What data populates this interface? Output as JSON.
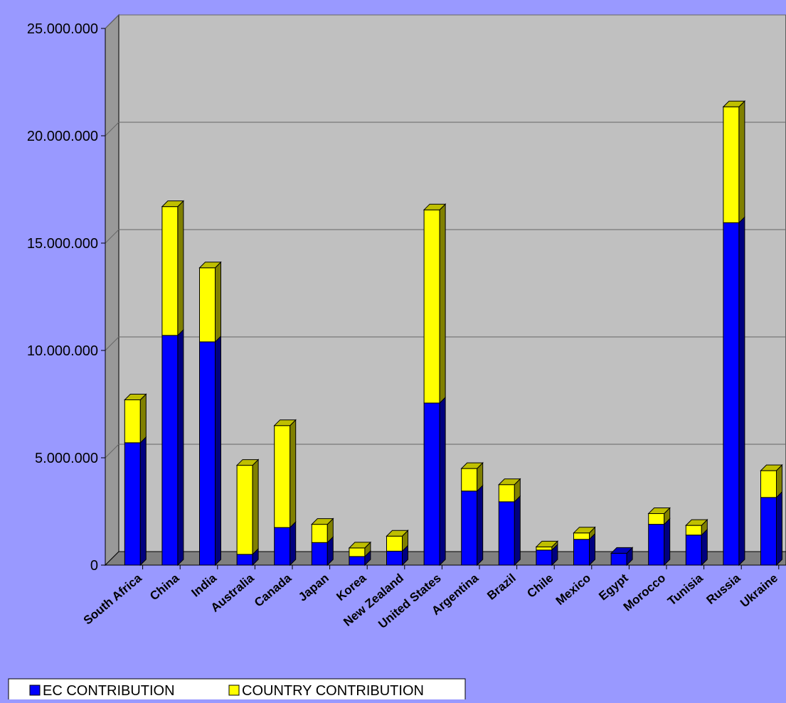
{
  "chart_data": {
    "type": "bar",
    "stacked": true,
    "three_d": true,
    "categories": [
      "South Africa",
      "China",
      "India",
      "Australia",
      "Canada",
      "Japan",
      "Korea",
      "New Zealand",
      "United States",
      "Argentina",
      "Brazil",
      "Chile",
      "Mexico",
      "Egypt",
      "Morocco",
      "Tunisia",
      "Russia",
      "Ukraine"
    ],
    "series": [
      {
        "name": "EC CONTRIBUTION",
        "color": "#0000ff",
        "values": [
          5700000,
          10700000,
          10400000,
          500000,
          1750000,
          1050000,
          400000,
          650000,
          7550000,
          3450000,
          2950000,
          700000,
          1200000,
          550000,
          1900000,
          1400000,
          15950000,
          3150000
        ]
      },
      {
        "name": "COUNTRY CONTRIBUTION",
        "color": "#ffff00",
        "values": [
          2000000,
          6000000,
          3450000,
          4150000,
          4750000,
          850000,
          400000,
          700000,
          9000000,
          1050000,
          800000,
          150000,
          300000,
          0,
          500000,
          450000,
          5400000,
          1250000
        ]
      }
    ],
    "ytick_labels": [
      "0",
      "5.000.000",
      "10.000.000",
      "15.000.000",
      "20.000.000",
      "25.000.000"
    ],
    "ylim": [
      0,
      25000000
    ],
    "ytick_step": 5000000,
    "grid": true,
    "legend_position": "bottom-left",
    "colors": {
      "background": "#9999ff",
      "plot_area": "#c0c0c0",
      "gridline": "#666666"
    }
  }
}
